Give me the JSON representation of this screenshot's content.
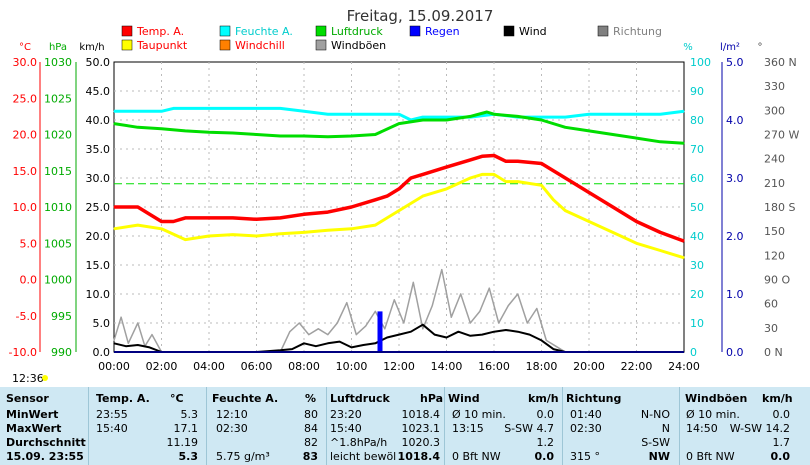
{
  "title": "Freitag, 15.09.2017",
  "legend": [
    {
      "name": "Temp. A.",
      "color": "#ff0000"
    },
    {
      "name": "Feuchte A.",
      "color": "#00ffff"
    },
    {
      "name": "Luftdruck",
      "color": "#00dd00"
    },
    {
      "name": "Regen",
      "color": "#0000ff"
    },
    {
      "name": "Wind",
      "color": "#000000"
    },
    {
      "name": "Richtung",
      "color": "#808080"
    },
    {
      "name": "Taupunkt",
      "color": "#ffff00"
    },
    {
      "name": "Windchill",
      "color": "#ff8000"
    },
    {
      "name": "Windböen",
      "color": "#a0a0a0"
    }
  ],
  "axis_units": {
    "temp": "°C",
    "pressure": "hPa",
    "wind": "km/h",
    "humidity": "%",
    "rain": "l/m²",
    "direction": "°"
  },
  "axes": {
    "temp_ticks": [
      "30.0",
      "25.0",
      "20.0",
      "15.0",
      "10.0",
      "5.0",
      "0.0",
      "-5.0",
      "-10.0"
    ],
    "pressure_ticks": [
      "1030",
      "1025",
      "1020",
      "1015",
      "1010",
      "1005",
      "1000",
      "995",
      "990"
    ],
    "wind_ticks": [
      "50.0",
      "45.0",
      "40.0",
      "35.0",
      "30.0",
      "25.0",
      "20.0",
      "15.0",
      "10.0",
      "5.0",
      "0.0"
    ],
    "humidity_ticks": [
      "100",
      "90",
      "80",
      "70",
      "60",
      "50",
      "40",
      "30",
      "20",
      "10",
      "0"
    ],
    "rain_ticks": [
      "5.0",
      "4.0",
      "3.0",
      "2.0",
      "1.0",
      "0.0"
    ],
    "direction_ticks": [
      "360 N",
      "330",
      "300",
      "270 W",
      "240",
      "210",
      "180 S",
      "150",
      "120",
      "90 O",
      "60",
      "30",
      "0 N"
    ],
    "time_ticks": [
      "00:00",
      "02:00",
      "04:00",
      "06:00",
      "08:00",
      "10:00",
      "12:00",
      "14:00",
      "16:00",
      "18:00",
      "20:00",
      "22:00",
      "24:00"
    ]
  },
  "sunrise_label": "12:36",
  "chart_data": {
    "type": "line",
    "title": "Freitag, 15.09.2017",
    "x_unit": "hour",
    "xlim": [
      0,
      24
    ],
    "series": [
      {
        "name": "Temp. A.",
        "axis": "°C",
        "ylim": [
          -10,
          30
        ],
        "x": [
          0,
          1,
          1.5,
          2,
          2.5,
          3,
          4,
          5,
          6,
          7,
          8,
          9,
          10,
          11,
          11.5,
          12,
          12.5,
          13,
          14,
          15,
          15.5,
          16,
          16.5,
          17,
          18,
          18.5,
          19,
          20,
          21,
          22,
          23,
          24
        ],
        "y": [
          10.0,
          10.0,
          9.0,
          8.0,
          8.0,
          8.5,
          8.5,
          8.5,
          8.3,
          8.5,
          9.0,
          9.3,
          10.0,
          11.0,
          11.5,
          12.5,
          14.0,
          14.5,
          15.5,
          16.5,
          17.0,
          17.1,
          16.3,
          16.3,
          16.0,
          15.0,
          14.0,
          12.0,
          10.0,
          8.0,
          6.5,
          5.3
        ]
      },
      {
        "name": "Taupunkt",
        "axis": "°C",
        "ylim": [
          -10,
          30
        ],
        "x": [
          0,
          1,
          2,
          3,
          4,
          5,
          6,
          7,
          8,
          9,
          10,
          11,
          11.5,
          12,
          12.5,
          13,
          14,
          15,
          15.5,
          16,
          16.5,
          17,
          18,
          18.5,
          19,
          20,
          21,
          22,
          23,
          24
        ],
        "y": [
          7.0,
          7.5,
          7.0,
          5.5,
          6.0,
          6.2,
          6.0,
          6.3,
          6.5,
          6.8,
          7.0,
          7.5,
          8.5,
          9.5,
          10.5,
          11.5,
          12.5,
          14.0,
          14.5,
          14.5,
          13.5,
          13.5,
          13.0,
          11.0,
          9.5,
          8.0,
          6.5,
          5.0,
          4.0,
          3.0
        ]
      },
      {
        "name": "Feuchte A.",
        "axis": "%",
        "ylim": [
          0,
          100
        ],
        "x": [
          0,
          1,
          2,
          2.5,
          3,
          4,
          5,
          6,
          7,
          8,
          9,
          10,
          11,
          12,
          12.5,
          13,
          14,
          15,
          16,
          17,
          18,
          19,
          20,
          21,
          22,
          23,
          24
        ],
        "y": [
          83,
          83,
          83,
          84,
          84,
          84,
          84,
          84,
          84,
          83,
          82,
          82,
          82,
          82,
          80,
          81,
          81,
          81,
          82,
          81,
          81,
          81,
          82,
          82,
          82,
          82,
          83
        ]
      },
      {
        "name": "Luftdruck",
        "axis": "hPa",
        "ylim": [
          990,
          1030
        ],
        "x": [
          0,
          1,
          2,
          3,
          4,
          5,
          6,
          7,
          8,
          9,
          10,
          11,
          12,
          13,
          14,
          15,
          15.7,
          16,
          17,
          18,
          19,
          20,
          21,
          22,
          23,
          24
        ],
        "y": [
          1021.5,
          1021.0,
          1020.8,
          1020.5,
          1020.3,
          1020.2,
          1020.0,
          1019.8,
          1019.8,
          1019.7,
          1019.8,
          1020.0,
          1021.5,
          1022.0,
          1022.0,
          1022.5,
          1023.1,
          1022.8,
          1022.5,
          1022.0,
          1021.0,
          1020.5,
          1020.0,
          1019.5,
          1019.0,
          1018.8
        ]
      },
      {
        "name": "Wind",
        "axis": "km/h",
        "ylim": [
          0,
          50
        ],
        "x": [
          0,
          0.5,
          1,
          1.5,
          2,
          2.5,
          3,
          4,
          5,
          6,
          7,
          7.5,
          8,
          8.5,
          9,
          9.5,
          10,
          10.5,
          11,
          11.5,
          12,
          12.5,
          13,
          13.5,
          14,
          14.5,
          15,
          15.5,
          16,
          16.5,
          17,
          17.5,
          18,
          18.5,
          19,
          20,
          21,
          22,
          23,
          24
        ],
        "y": [
          1.5,
          1.0,
          1.2,
          0.8,
          0.0,
          0.0,
          0.0,
          0.0,
          0.0,
          0.0,
          0.3,
          0.5,
          1.5,
          1.0,
          1.5,
          1.8,
          0.8,
          1.2,
          1.5,
          2.5,
          3.0,
          3.5,
          4.7,
          3.0,
          2.5,
          3.5,
          2.8,
          3.0,
          3.5,
          3.8,
          3.5,
          3.0,
          2.0,
          0.5,
          0.0,
          0.0,
          0.0,
          0.0,
          0.0,
          0.0
        ]
      },
      {
        "name": "Windböen",
        "axis": "km/h",
        "ylim": [
          0,
          50
        ],
        "x": [
          0,
          0.3,
          0.6,
          1,
          1.3,
          1.6,
          2,
          3,
          4,
          5,
          6,
          7,
          7.4,
          7.8,
          8.2,
          8.6,
          9,
          9.4,
          9.8,
          10.2,
          10.6,
          11,
          11.4,
          11.8,
          12.2,
          12.6,
          13,
          13.4,
          13.8,
          14.2,
          14.6,
          15,
          15.4,
          15.8,
          16.2,
          16.6,
          17,
          17.4,
          17.8,
          18.2,
          18.6,
          19,
          20,
          21,
          22,
          23,
          24
        ],
        "y": [
          2.0,
          6.0,
          1.5,
          5.0,
          1.0,
          3.0,
          0.0,
          0.0,
          0.0,
          0.0,
          0.0,
          0.0,
          3.5,
          5.0,
          3.0,
          4.0,
          3.0,
          5.0,
          8.5,
          3.0,
          4.5,
          7.0,
          4.0,
          9.0,
          5.0,
          12.0,
          4.0,
          8.0,
          14.2,
          6.0,
          10.0,
          5.0,
          7.0,
          11.0,
          5.0,
          8.0,
          10.0,
          5.0,
          7.5,
          2.0,
          1.0,
          0.0,
          0.0,
          0.0,
          0.0,
          0.0,
          0.0
        ]
      },
      {
        "name": "Regen",
        "axis": "l/m²",
        "ylim": [
          0,
          5
        ],
        "x": [
          11.2
        ],
        "y": [
          0.7
        ]
      }
    ],
    "reference_line": {
      "name": "Luftdruck",
      "value": 1013.2
    }
  },
  "table": {
    "headers": [
      "Sensor",
      "Temp. A.",
      "°C",
      "Feuchte A.",
      "%",
      "Luftdruck",
      "hPa",
      "Wind",
      "km/h",
      "Richtung",
      "Windböen",
      "km/h"
    ],
    "rows": [
      {
        "label": "MinWert",
        "temp_time": "23:55",
        "temp_val": "5.3",
        "hum_time": "12:10",
        "hum_val": "80",
        "press_time": "23:20",
        "press_val": "1018.4",
        "wind_time": "Ø 10 min.",
        "wind_val": "0.0",
        "dir_time": "01:40",
        "dir_val": "N-NO",
        "gust_time": "Ø 10 min.",
        "gust_val": "0.0"
      },
      {
        "label": "MaxWert",
        "temp_time": "15:40",
        "temp_val": "17.1",
        "hum_time": "02:30",
        "hum_val": "84",
        "press_time": "15:40",
        "press_val": "1023.1",
        "wind_time": "13:15",
        "wind_val": "S-SW 4.7",
        "dir_time": "02:30",
        "dir_val": "N",
        "gust_time": "14:50",
        "gust_val": "W-SW 14.2"
      },
      {
        "label": "Durchschnitt",
        "temp_time": "",
        "temp_val": "11.19",
        "hum_time": "",
        "hum_val": "82",
        "press_time": "^1.8hPa/h",
        "press_val": "1020.3",
        "wind_time": "",
        "wind_val": "1.2",
        "dir_time": "",
        "dir_val": "S-SW",
        "gust_time": "",
        "gust_val": "1.7"
      },
      {
        "label": "15.09. 23:55",
        "temp_time": "",
        "temp_val": "5.3",
        "hum_time": "5.75 g/m³",
        "hum_val": "83",
        "press_time": "leicht bewöl",
        "press_val": "1018.4",
        "wind_time": "0 Bft NW",
        "wind_val": "0.0",
        "dir_time": "315 °",
        "dir_val": "NW",
        "gust_time": "0 Bft NW",
        "gust_val": "0.0"
      }
    ]
  }
}
